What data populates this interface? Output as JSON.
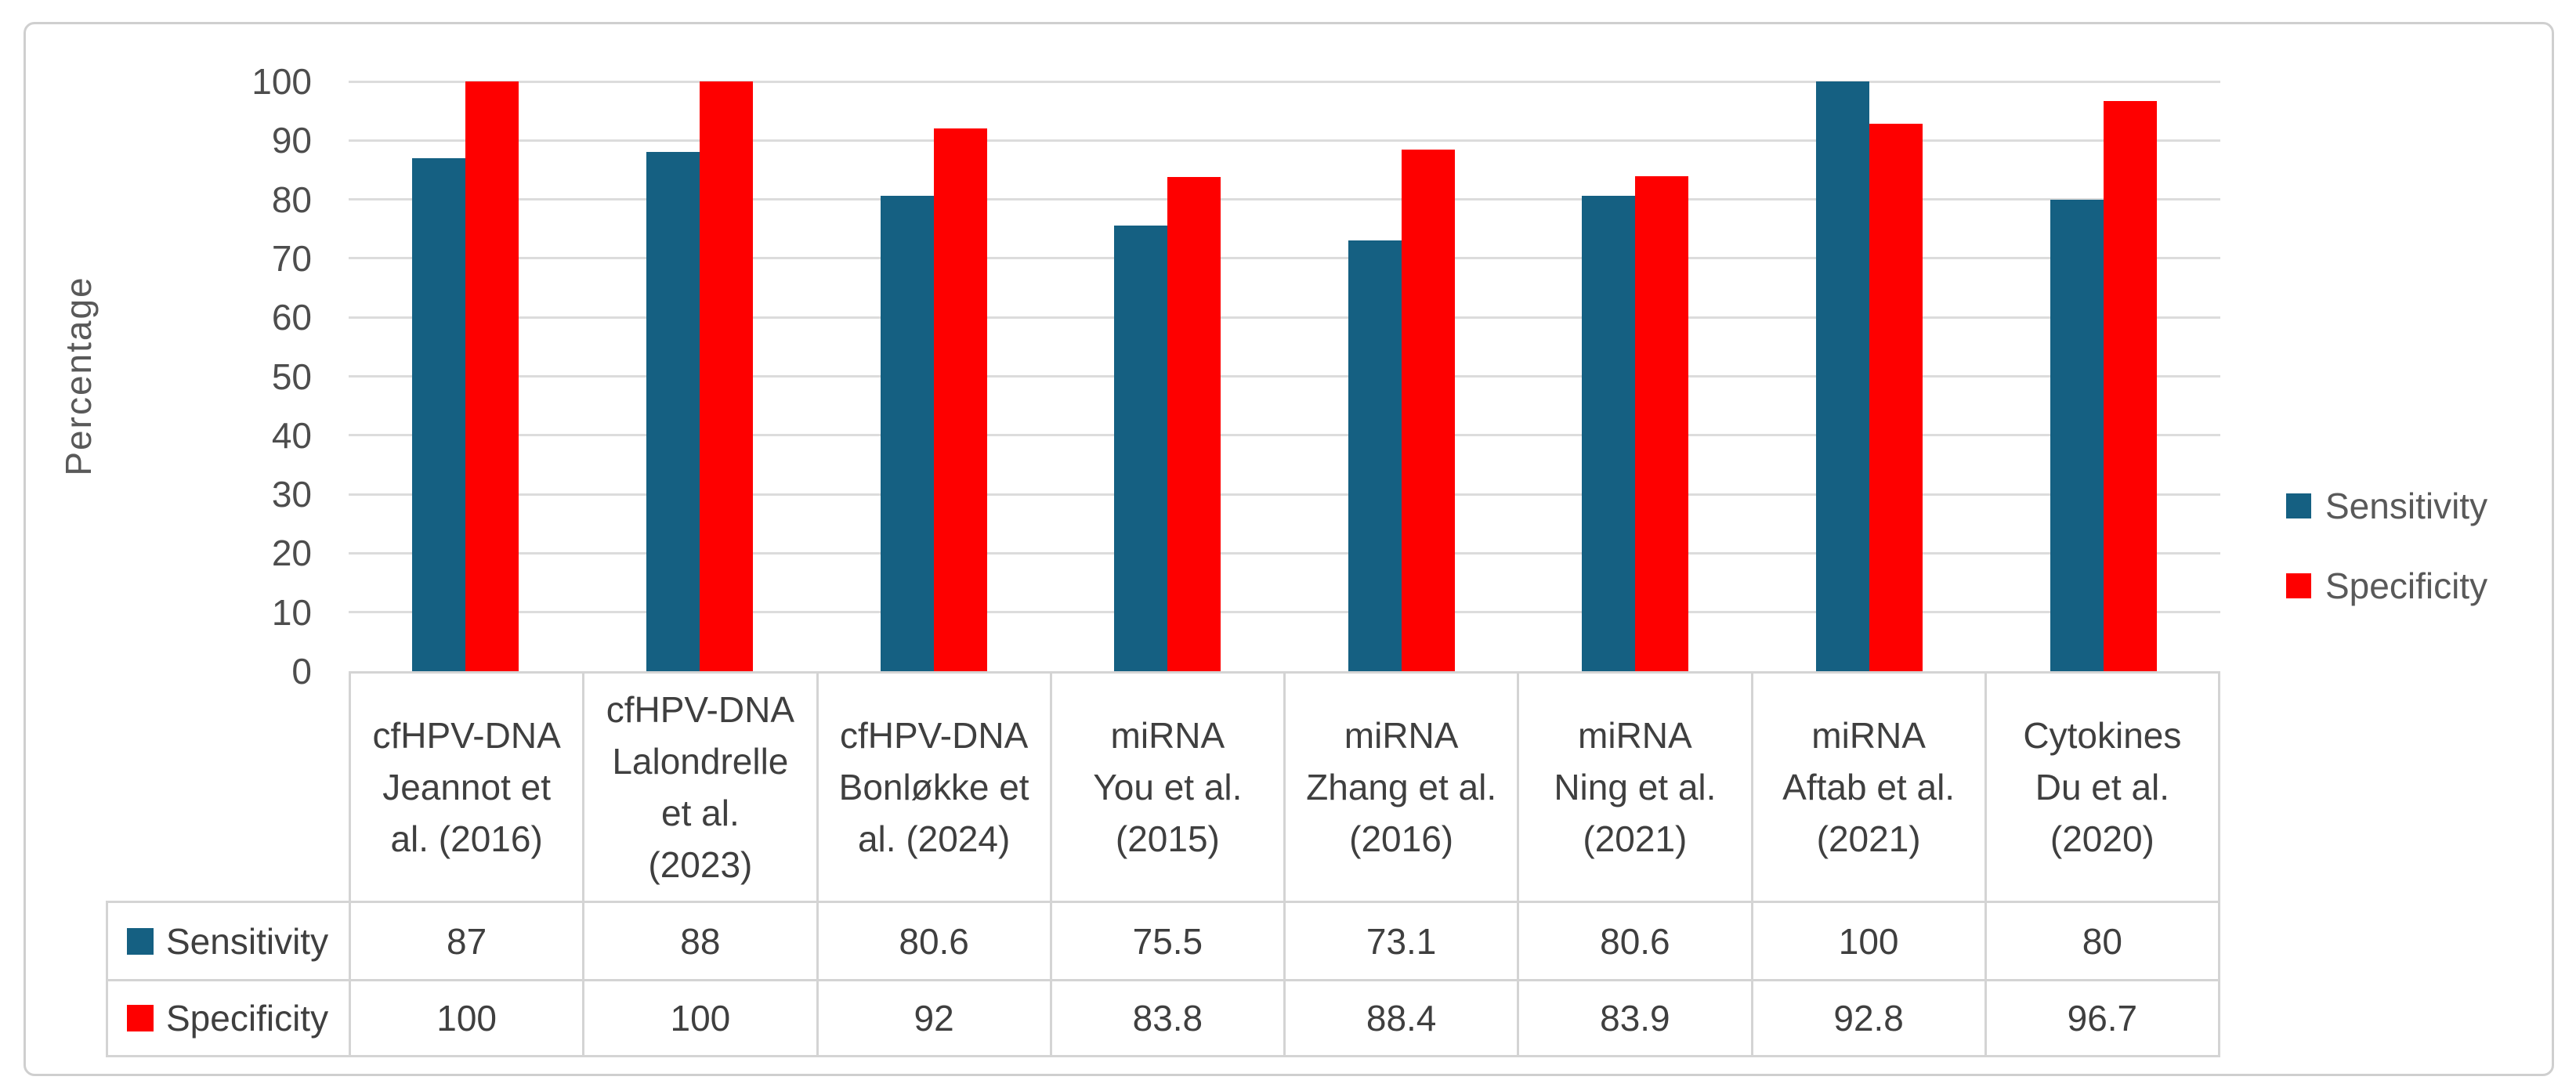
{
  "chart_data": {
    "type": "bar",
    "title": "",
    "xlabel": "",
    "ylabel": "Percentage",
    "ylim": [
      0,
      100
    ],
    "ytick_step": 10,
    "yticks": [
      0,
      10,
      20,
      30,
      40,
      50,
      60,
      70,
      80,
      90,
      100
    ],
    "grid": true,
    "legend_position": "right",
    "categories": [
      "cfHPV-DNA\nJeannot et\nal. (2016)",
      "cfHPV-DNA\nLalondrelle\net al.\n(2023)",
      "cfHPV-DNA\nBonløkke et\nal. (2024)",
      "miRNA\nYou et al.\n(2015)",
      "miRNA\nZhang et al.\n(2016)",
      "miRNA\nNing et al.\n(2021)",
      "miRNA\nAftab et al.\n(2021)",
      "Cytokines\nDu et al.\n(2020)"
    ],
    "series": [
      {
        "name": "Sensitivity",
        "color": "#156082",
        "values": [
          87,
          88,
          80.6,
          75.5,
          73.1,
          80.6,
          100,
          80
        ]
      },
      {
        "name": "Specificity",
        "color": "#FE0000",
        "values": [
          100,
          100,
          92,
          83.8,
          88.4,
          83.9,
          92.8,
          96.7
        ]
      }
    ]
  }
}
